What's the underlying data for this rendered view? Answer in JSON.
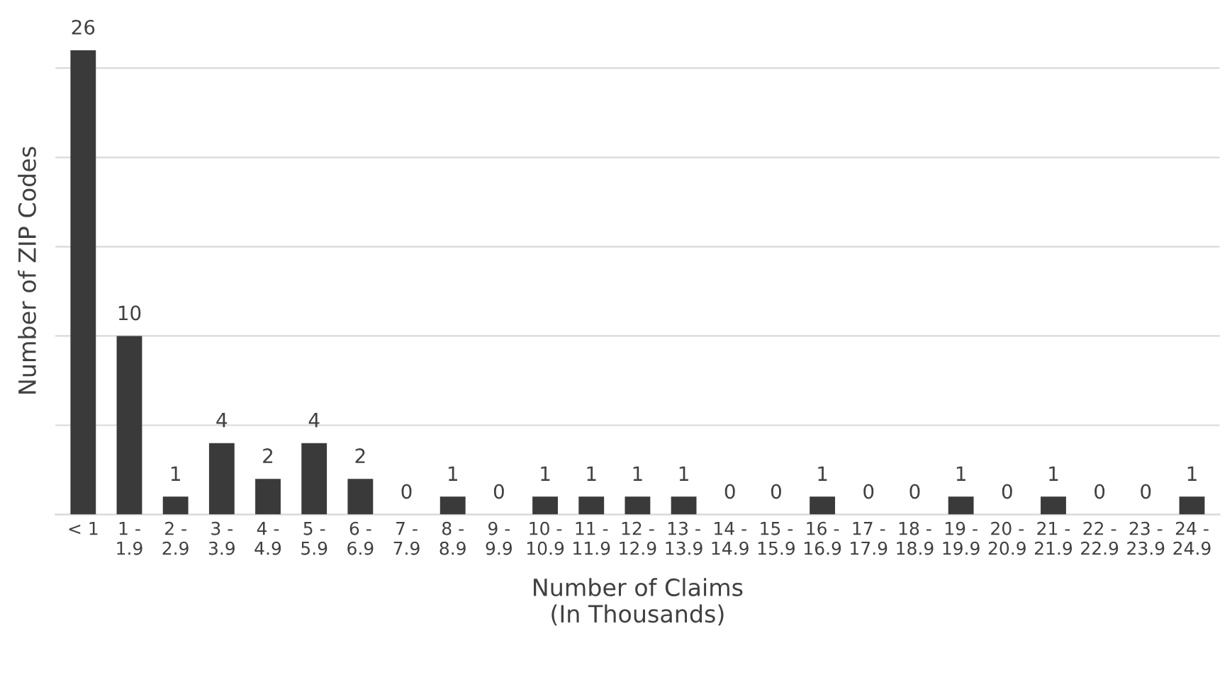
{
  "chart_data": {
    "type": "bar",
    "xlabel": "Number of Claims\n(In Thousands)",
    "ylabel": "Number of ZIP Codes",
    "categories": [
      "< 1",
      "1 - 1.9",
      "2 - 2.9",
      "3 - 3.9",
      "4 - 4.9",
      "5 - 5.9",
      "6 - 6.9",
      "7 - 7.9",
      "8 - 8.9",
      "9 - 9.9",
      "10 - 10.9",
      "11 - 11.9",
      "12 - 12.9",
      "13 - 13.9",
      "14 - 14.9",
      "15 - 15.9",
      "16 - 16.9",
      "17 - 17.9",
      "18 - 18.9",
      "19 - 19.9",
      "20 - 20.9",
      "21 - 21.9",
      "22 - 22.9",
      "23 - 23.9",
      "24 - 24.9"
    ],
    "values": [
      26,
      10,
      1,
      4,
      2,
      4,
      2,
      0,
      1,
      0,
      1,
      1,
      1,
      1,
      0,
      0,
      1,
      0,
      0,
      1,
      0,
      1,
      0,
      0,
      1
    ],
    "color": "#3a3a3a",
    "data_labels": true,
    "yticks": [
      {
        "value": 0,
        "label": null
      },
      {
        "value": 5,
        "label": null
      },
      {
        "value": 10,
        "label": null
      },
      {
        "value": 15,
        "label": null
      },
      {
        "value": 20,
        "label": null
      },
      {
        "value": 25,
        "label": null
      }
    ],
    "tick_labels": "x",
    "grid": "y",
    "legend": false
  }
}
